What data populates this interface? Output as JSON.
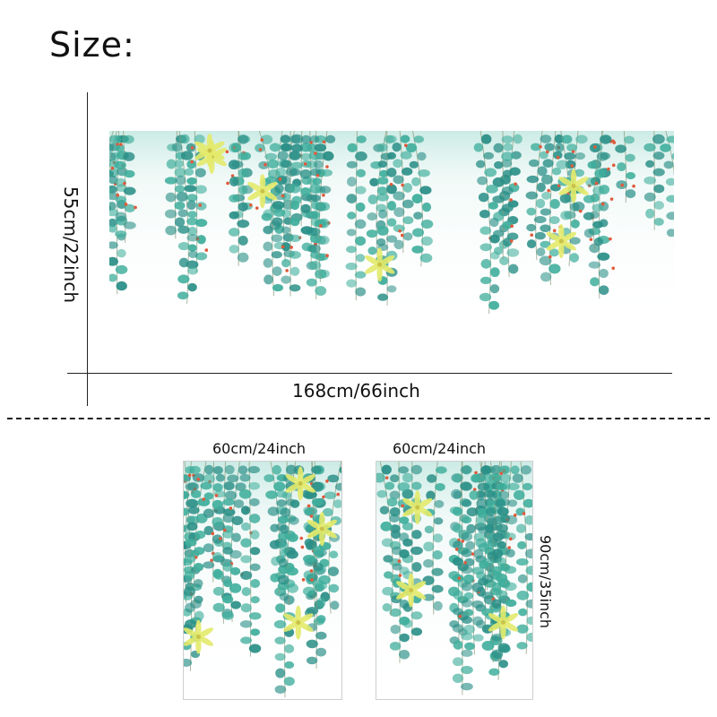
{
  "title": "Size:",
  "large": {
    "height_label": "55cm/22inch",
    "width_label": "168cm/66inch"
  },
  "small_left": {
    "width_label": "60cm/24inch"
  },
  "small_right": {
    "width_label": "60cm/24inch",
    "height_label": "90cm/35inch"
  },
  "colors": {
    "leaf": "#3fae9c",
    "leaf_dark": "#2a8f87",
    "berry": "#e0593a",
    "flower": "#e3ea6a",
    "stem": "#8a9a7a"
  }
}
